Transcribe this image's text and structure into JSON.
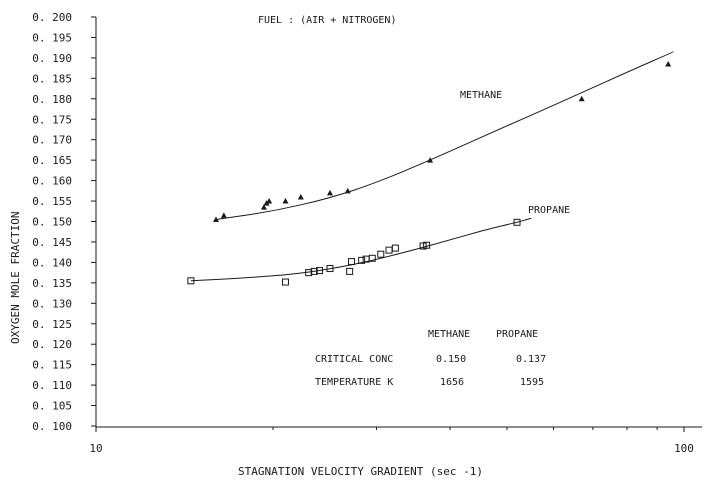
{
  "chart_data": {
    "type": "scatter",
    "title": "FUEL : (AIR + NITROGEN)",
    "xlabel": "STAGNATION VELOCITY GRADIENT (sec -1)",
    "ylabel": "OXYGEN MOLE FRACTION",
    "xscale": "log",
    "xlim": [
      10,
      100
    ],
    "ylim": [
      0.1,
      0.2
    ],
    "xticks": [
      {
        "value": 10,
        "label": "10"
      },
      {
        "value": 100,
        "label": "100"
      }
    ],
    "yticks": [
      "0.100",
      "0.105",
      "0.110",
      "0.115",
      "0.120",
      "0.125",
      "0.130",
      "0.135",
      "0.140",
      "0.145",
      "0.150",
      "0.155",
      "0.160",
      "0.165",
      "0.170",
      "0.175",
      "0.180",
      "0.185",
      "0.190",
      "0.195",
      "0.200"
    ],
    "series": [
      {
        "name": "METHANE",
        "marker": "triangle",
        "points": [
          {
            "x": 16.0,
            "y": 0.1505
          },
          {
            "x": 16.5,
            "y": 0.1515
          },
          {
            "x": 19.3,
            "y": 0.1535
          },
          {
            "x": 19.5,
            "y": 0.1545
          },
          {
            "x": 19.7,
            "y": 0.155
          },
          {
            "x": 21.0,
            "y": 0.155
          },
          {
            "x": 22.3,
            "y": 0.156
          },
          {
            "x": 25.0,
            "y": 0.157
          },
          {
            "x": 26.8,
            "y": 0.1575
          },
          {
            "x": 37.0,
            "y": 0.165
          },
          {
            "x": 67.0,
            "y": 0.18
          },
          {
            "x": 94.0,
            "y": 0.1885
          }
        ],
        "fit": [
          {
            "x": 16.0,
            "y": 0.1505
          },
          {
            "x": 20.0,
            "y": 0.1525
          },
          {
            "x": 25.0,
            "y": 0.1557
          },
          {
            "x": 30.0,
            "y": 0.1595
          },
          {
            "x": 37.0,
            "y": 0.165
          },
          {
            "x": 45.0,
            "y": 0.1705
          },
          {
            "x": 55.0,
            "y": 0.176
          },
          {
            "x": 67.0,
            "y": 0.1815
          },
          {
            "x": 80.0,
            "y": 0.1865
          },
          {
            "x": 96.0,
            "y": 0.1915
          }
        ]
      },
      {
        "name": "PROPANE",
        "marker": "square",
        "points": [
          {
            "x": 14.5,
            "y": 0.1355
          },
          {
            "x": 21.0,
            "y": 0.1352
          },
          {
            "x": 23.0,
            "y": 0.1375
          },
          {
            "x": 23.5,
            "y": 0.1378
          },
          {
            "x": 24.0,
            "y": 0.138
          },
          {
            "x": 25.0,
            "y": 0.1385
          },
          {
            "x": 27.0,
            "y": 0.1378
          },
          {
            "x": 27.2,
            "y": 0.1402
          },
          {
            "x": 28.3,
            "y": 0.1405
          },
          {
            "x": 28.8,
            "y": 0.1408
          },
          {
            "x": 29.5,
            "y": 0.141
          },
          {
            "x": 30.5,
            "y": 0.142
          },
          {
            "x": 31.5,
            "y": 0.143
          },
          {
            "x": 32.3,
            "y": 0.1435
          },
          {
            "x": 36.0,
            "y": 0.144
          },
          {
            "x": 36.5,
            "y": 0.1442
          },
          {
            "x": 52.0,
            "y": 0.1498
          }
        ],
        "fit": [
          {
            "x": 14.5,
            "y": 0.1355
          },
          {
            "x": 18.0,
            "y": 0.1362
          },
          {
            "x": 22.0,
            "y": 0.1372
          },
          {
            "x": 26.0,
            "y": 0.1388
          },
          {
            "x": 30.0,
            "y": 0.1407
          },
          {
            "x": 35.0,
            "y": 0.1432
          },
          {
            "x": 40.0,
            "y": 0.1455
          },
          {
            "x": 46.0,
            "y": 0.148
          },
          {
            "x": 52.0,
            "y": 0.1498
          },
          {
            "x": 55.0,
            "y": 0.1508
          }
        ]
      }
    ],
    "annotations": {
      "methane_label": "METHANE",
      "propane_label": "PROPANE"
    },
    "table": {
      "headers": [
        "METHANE",
        "PROPANE"
      ],
      "rows": [
        {
          "label": "CRITICAL CONC",
          "methane": "0.150",
          "propane": "0.137"
        },
        {
          "label": "TEMPERATURE K",
          "methane": "1656",
          "propane": "1595"
        }
      ]
    }
  }
}
